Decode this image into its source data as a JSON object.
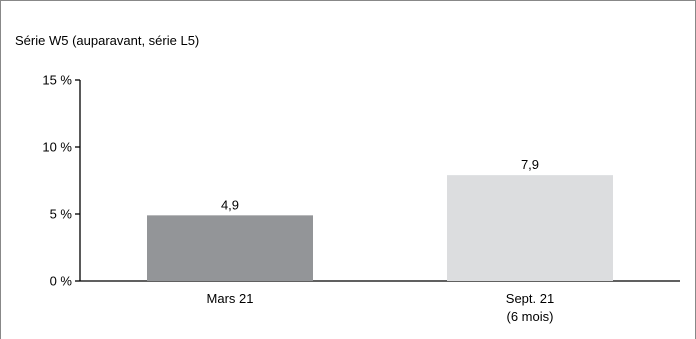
{
  "chart_data": {
    "type": "bar",
    "title": "Série W5 (auparavant, série L5)",
    "xlabel": "",
    "ylabel": "",
    "categories": [
      [
        "Mars 21"
      ],
      [
        "Sept. 21",
        "(6 mois)"
      ]
    ],
    "values": [
      4.9,
      7.9
    ],
    "value_labels": [
      "4,9",
      "7,9"
    ],
    "bar_colors": [
      "#939598",
      "#dcdddf"
    ],
    "ylim": [
      0,
      15
    ],
    "yticks": [
      0,
      5,
      10,
      15
    ],
    "ytick_labels": [
      "0 %",
      "5 %",
      "10 %",
      "15 %"
    ],
    "grid": false,
    "legend": "none"
  },
  "colors": {
    "axis": "#000000",
    "frame": "#888888",
    "text": "#000000"
  }
}
